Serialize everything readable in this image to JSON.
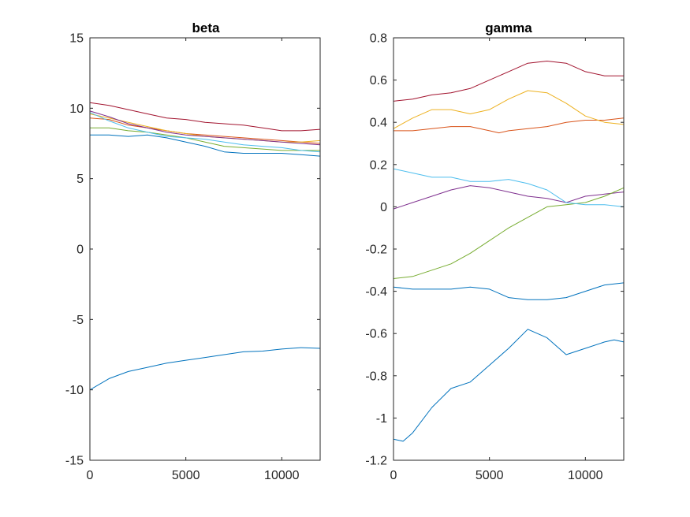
{
  "chart_data": [
    {
      "type": "line",
      "title": "beta",
      "xlabel": "",
      "ylabel": "",
      "xlim": [
        0,
        12000
      ],
      "ylim": [
        -15,
        15
      ],
      "xticks": [
        0,
        5000,
        10000
      ],
      "yticks": [
        -15,
        -10,
        -5,
        0,
        5,
        10,
        15
      ],
      "xtick_labels": [
        "0",
        "5000",
        "10000"
      ],
      "ytick_labels": [
        "-15",
        "-10",
        "-5",
        "0",
        "5",
        "10",
        "15"
      ],
      "grid": false,
      "series": [
        {
          "color": "#0072BD",
          "x": [
            0,
            1000,
            2000,
            3000,
            4000,
            5000,
            6000,
            7000,
            8000,
            9000,
            10000,
            11000,
            12000
          ],
          "y": [
            -10,
            -9.2,
            -8.7,
            -8.4,
            -8.1,
            -7.9,
            -7.7,
            -7.5,
            -7.3,
            -7.25,
            -7.1,
            -7.0,
            -7.05
          ]
        },
        {
          "color": "#0072BD",
          "x": [
            0,
            1000,
            2000,
            3000,
            4000,
            5000,
            6000,
            7000,
            8000,
            9000,
            10000,
            11000,
            12000
          ],
          "y": [
            8.1,
            8.1,
            8.0,
            8.1,
            7.9,
            7.6,
            7.3,
            6.9,
            6.8,
            6.8,
            6.8,
            6.7,
            6.6
          ]
        },
        {
          "color": "#D95319",
          "x": [
            0,
            1000,
            2000,
            3000,
            4000,
            5000,
            6000,
            7000,
            8000,
            9000,
            10000,
            11000,
            12000
          ],
          "y": [
            9.3,
            9.2,
            8.8,
            8.6,
            8.4,
            8.2,
            8.1,
            8.0,
            7.9,
            7.8,
            7.7,
            7.6,
            7.5
          ]
        },
        {
          "color": "#EDB120",
          "x": [
            0,
            1000,
            2000,
            3000,
            4000,
            5000,
            6000,
            7000,
            8000,
            9000,
            10000,
            11000,
            12000
          ],
          "y": [
            9.6,
            9.3,
            9.0,
            8.7,
            8.4,
            8.2,
            8.0,
            7.9,
            7.8,
            7.7,
            7.6,
            7.6,
            7.7
          ]
        },
        {
          "color": "#7E2F8E",
          "x": [
            0,
            1000,
            2000,
            3000,
            4000,
            5000,
            6000,
            7000,
            8000,
            9000,
            10000,
            11000,
            12000
          ],
          "y": [
            9.8,
            9.4,
            8.9,
            8.6,
            8.3,
            8.1,
            8.0,
            7.9,
            7.8,
            7.7,
            7.6,
            7.5,
            7.4
          ]
        },
        {
          "color": "#77AC30",
          "x": [
            0,
            1000,
            2000,
            3000,
            4000,
            5000,
            6000,
            7000,
            8000,
            9000,
            10000,
            11000,
            12000
          ],
          "y": [
            8.6,
            8.6,
            8.4,
            8.3,
            8.1,
            7.9,
            7.6,
            7.3,
            7.2,
            7.1,
            7.0,
            7.0,
            7.0
          ]
        },
        {
          "color": "#4DBEEE",
          "x": [
            0,
            1000,
            2000,
            3000,
            4000,
            5000,
            6000,
            7000,
            8000,
            9000,
            10000,
            11000,
            12000
          ],
          "y": [
            9.7,
            9.1,
            8.6,
            8.3,
            8.0,
            7.9,
            7.8,
            7.6,
            7.4,
            7.3,
            7.2,
            7.0,
            6.9
          ]
        },
        {
          "color": "#A2142F",
          "x": [
            0,
            1000,
            2000,
            3000,
            4000,
            5000,
            6000,
            7000,
            8000,
            9000,
            10000,
            11000,
            12000
          ],
          "y": [
            10.4,
            10.2,
            9.9,
            9.6,
            9.3,
            9.2,
            9.0,
            8.9,
            8.8,
            8.6,
            8.4,
            8.4,
            8.5
          ]
        }
      ]
    },
    {
      "type": "line",
      "title": "gamma",
      "xlabel": "",
      "ylabel": "",
      "xlim": [
        0,
        12000
      ],
      "ylim": [
        -1.2,
        0.8
      ],
      "xticks": [
        0,
        5000,
        10000
      ],
      "yticks": [
        -1.2,
        -1,
        -0.8,
        -0.6,
        -0.4,
        -0.2,
        0,
        0.2,
        0.4,
        0.6,
        0.8
      ],
      "xtick_labels": [
        "0",
        "5000",
        "10000"
      ],
      "ytick_labels": [
        "-1.2",
        "-1",
        "-0.8",
        "-0.6",
        "-0.4",
        "-0.2",
        "0",
        "0.2",
        "0.4",
        "0.6",
        "0.8"
      ],
      "grid": false,
      "series": [
        {
          "color": "#0072BD",
          "x": [
            0,
            500,
            1000,
            2000,
            3000,
            4000,
            5000,
            6000,
            7000,
            8000,
            9000,
            10000,
            11000,
            11500,
            12000
          ],
          "y": [
            -1.1,
            -1.11,
            -1.07,
            -0.95,
            -0.86,
            -0.83,
            -0.75,
            -0.67,
            -0.58,
            -0.62,
            -0.7,
            -0.67,
            -0.64,
            -0.63,
            -0.64
          ]
        },
        {
          "color": "#0072BD",
          "x": [
            0,
            1000,
            2000,
            3000,
            4000,
            5000,
            6000,
            7000,
            8000,
            9000,
            10000,
            11000,
            12000
          ],
          "y": [
            -0.38,
            -0.39,
            -0.39,
            -0.39,
            -0.38,
            -0.39,
            -0.43,
            -0.44,
            -0.44,
            -0.43,
            -0.4,
            -0.37,
            -0.36
          ]
        },
        {
          "color": "#D95319",
          "x": [
            0,
            1000,
            2000,
            3000,
            4000,
            5000,
            5500,
            6000,
            7000,
            8000,
            9000,
            10000,
            11000,
            12000
          ],
          "y": [
            0.36,
            0.36,
            0.37,
            0.38,
            0.38,
            0.36,
            0.35,
            0.36,
            0.37,
            0.38,
            0.4,
            0.41,
            0.41,
            0.42
          ]
        },
        {
          "color": "#EDB120",
          "x": [
            0,
            1000,
            2000,
            3000,
            4000,
            5000,
            6000,
            7000,
            8000,
            9000,
            10000,
            11000,
            12000
          ],
          "y": [
            0.37,
            0.42,
            0.46,
            0.46,
            0.44,
            0.46,
            0.51,
            0.55,
            0.54,
            0.49,
            0.43,
            0.4,
            0.39
          ]
        },
        {
          "color": "#7E2F8E",
          "x": [
            0,
            1000,
            2000,
            3000,
            4000,
            5000,
            6000,
            7000,
            8000,
            9000,
            10000,
            11000,
            12000
          ],
          "y": [
            -0.01,
            0.02,
            0.05,
            0.08,
            0.1,
            0.09,
            0.07,
            0.05,
            0.04,
            0.02,
            0.05,
            0.06,
            0.07
          ]
        },
        {
          "color": "#77AC30",
          "x": [
            0,
            1000,
            2000,
            3000,
            4000,
            5000,
            6000,
            7000,
            8000,
            9000,
            10000,
            11000,
            12000
          ],
          "y": [
            -0.34,
            -0.33,
            -0.3,
            -0.27,
            -0.22,
            -0.16,
            -0.1,
            -0.05,
            0.0,
            0.01,
            0.02,
            0.05,
            0.09
          ]
        },
        {
          "color": "#4DBEEE",
          "x": [
            0,
            1000,
            2000,
            3000,
            4000,
            5000,
            6000,
            7000,
            8000,
            9000,
            10000,
            11000,
            12000
          ],
          "y": [
            0.18,
            0.16,
            0.14,
            0.14,
            0.12,
            0.12,
            0.13,
            0.11,
            0.08,
            0.02,
            0.01,
            0.01,
            0.0
          ]
        },
        {
          "color": "#A2142F",
          "x": [
            0,
            1000,
            2000,
            3000,
            4000,
            5000,
            6000,
            7000,
            8000,
            9000,
            10000,
            11000,
            12000
          ],
          "y": [
            0.5,
            0.51,
            0.53,
            0.54,
            0.56,
            0.6,
            0.64,
            0.68,
            0.69,
            0.68,
            0.64,
            0.62,
            0.62
          ]
        }
      ]
    }
  ]
}
